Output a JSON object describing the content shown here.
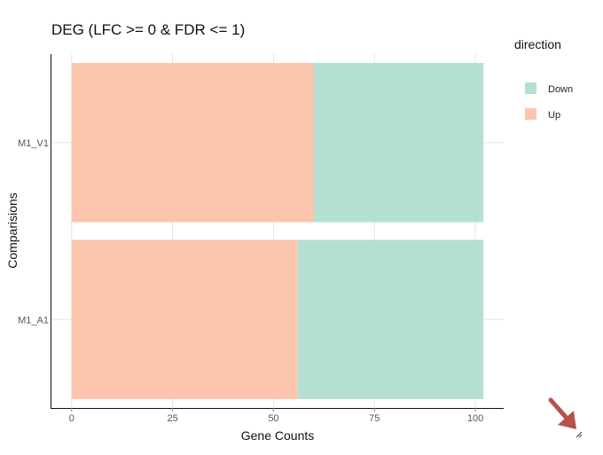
{
  "chart_data": {
    "type": "bar",
    "orientation": "horizontal",
    "stacked": true,
    "title": "DEG (LFC >= 0 & FDR <= 1)",
    "xlabel": "Gene Counts",
    "ylabel": "Comparisions",
    "categories": [
      "M1_V1",
      "M1_A1"
    ],
    "series": [
      {
        "name": "Up",
        "values": [
          60,
          56
        ],
        "color": "#fcc5ae"
      },
      {
        "name": "Down",
        "values": [
          42,
          46
        ],
        "color": "#b3e0d3"
      }
    ],
    "xlim": [
      -5,
      107
    ],
    "xticks": [
      0,
      25,
      50,
      75,
      100
    ],
    "grid": true,
    "legend": {
      "title": "direction",
      "placement": "right",
      "items": [
        {
          "label": "Down",
          "color": "#b3e0d3"
        },
        {
          "label": "Up",
          "color": "#fcc5ae"
        }
      ]
    }
  },
  "icons": {
    "resize_arrow_color": "#b5524a"
  }
}
